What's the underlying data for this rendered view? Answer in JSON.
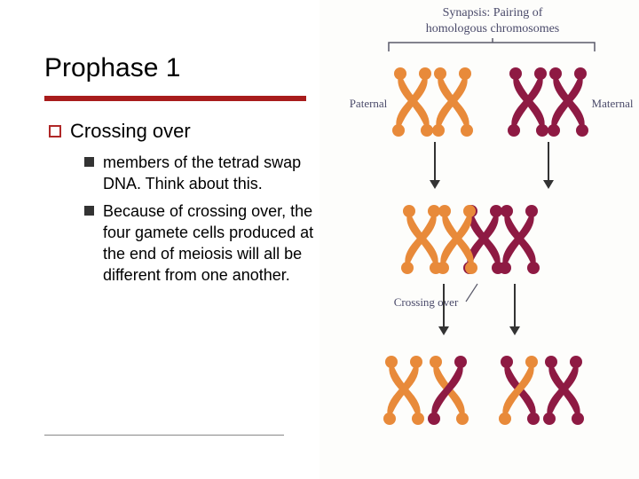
{
  "slide": {
    "title": "Prophase 1",
    "title_fontsize": 30,
    "underline_color": "#a81c1c",
    "underline_width": 295,
    "underline_height": 6,
    "bottom_rule_color": "#888888"
  },
  "outline": {
    "level1_bullet_color": "#b02828",
    "level2_bullet_color": "#333333",
    "item1": {
      "label": "Crossing over",
      "sub1": "members of the tetrad swap DNA. Think about this.",
      "sub2": "Because of crossing over, the four gamete cells produced at the end of meiosis will all be different from one another."
    }
  },
  "diagram": {
    "header1": "Synapsis: Pairing of",
    "header2": "homologous chromosomes",
    "paternal_label": "Paternal",
    "maternal_label": "Maternal",
    "crossing_label": "Crossing over",
    "colors": {
      "paternal": "#e88a3a",
      "maternal": "#8e1a43",
      "label_text": "#4a4a6a",
      "arrow": "#333333",
      "line": "#5a5a6a",
      "background": "#fdfdfb"
    },
    "fontsize_header": 14,
    "fontsize_label": 13
  }
}
